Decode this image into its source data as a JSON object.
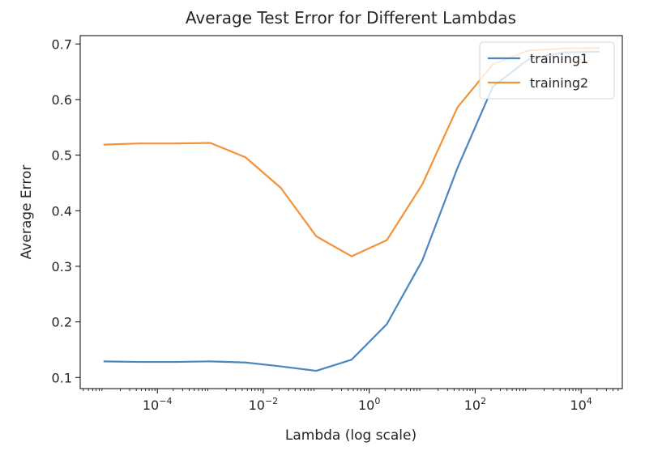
{
  "chart_data": {
    "type": "line",
    "title": "Average Test Error for Different Lambdas",
    "xlabel": "Lambda (log scale)",
    "ylabel": "Average Error",
    "xscale": "log",
    "x": [
      1e-05,
      4.64e-05,
      0.000215,
      0.001,
      0.00464,
      0.0215,
      0.1,
      0.464,
      2.15,
      10,
      46.4,
      215,
      1000,
      4640,
      21500
    ],
    "xlim": [
      3.5e-06,
      60000
    ],
    "ylim": [
      0.08,
      0.715
    ],
    "xticks": [
      {
        "value": 0.0001,
        "base": "10",
        "exp": "−4"
      },
      {
        "value": 0.01,
        "base": "10",
        "exp": "−2"
      },
      {
        "value": 1,
        "base": "10",
        "exp": "0"
      },
      {
        "value": 100,
        "base": "10",
        "exp": "2"
      },
      {
        "value": 10000,
        "base": "10",
        "exp": "4"
      }
    ],
    "yticks": [
      {
        "value": 0.1,
        "label": "0.1"
      },
      {
        "value": 0.2,
        "label": "0.2"
      },
      {
        "value": 0.3,
        "label": "0.3"
      },
      {
        "value": 0.4,
        "label": "0.4"
      },
      {
        "value": 0.5,
        "label": "0.5"
      },
      {
        "value": 0.6,
        "label": "0.6"
      },
      {
        "value": 0.7,
        "label": "0.7"
      }
    ],
    "grid": false,
    "legend_position": "top-right",
    "series": [
      {
        "name": "training1",
        "color": "#4a86c0",
        "values": [
          0.129,
          0.128,
          0.128,
          0.129,
          0.127,
          0.12,
          0.112,
          0.132,
          0.196,
          0.31,
          0.477,
          0.623,
          0.672,
          0.685,
          0.686
        ]
      },
      {
        "name": "training2",
        "color": "#f39237",
        "values": [
          0.519,
          0.521,
          0.521,
          0.522,
          0.496,
          0.441,
          0.354,
          0.318,
          0.347,
          0.447,
          0.586,
          0.663,
          0.688,
          0.692,
          0.693
        ]
      }
    ]
  }
}
